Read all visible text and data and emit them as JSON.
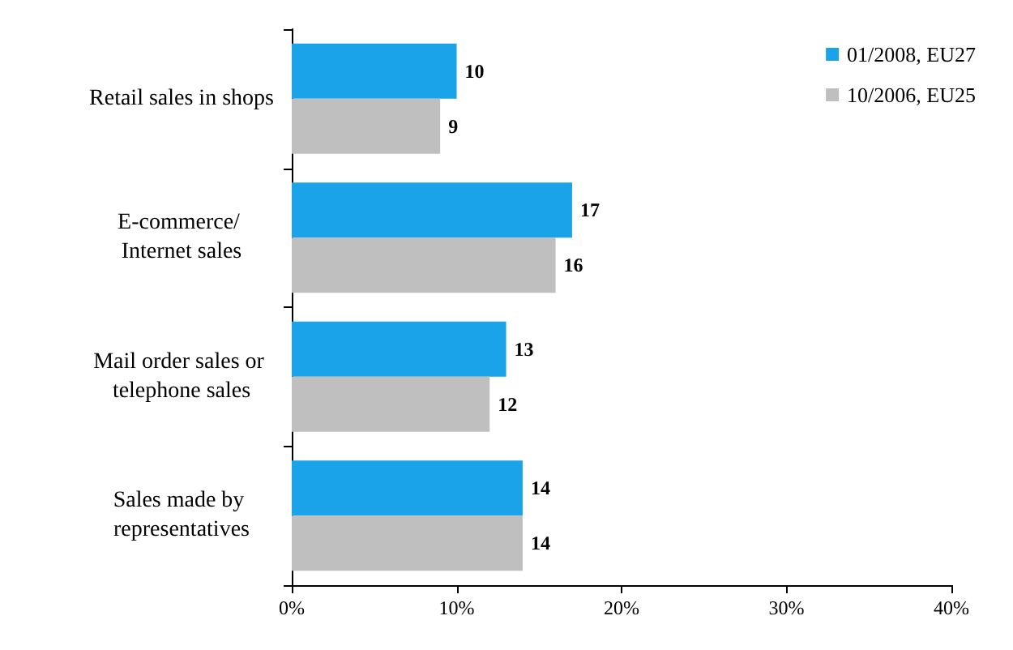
{
  "chart_data": {
    "type": "bar",
    "orientation": "horizontal",
    "categories": [
      "Retail sales in shops",
      "E-commerce/ Internet sales",
      "Mail order sales or telephone sales",
      "Sales made by representatives"
    ],
    "series": [
      {
        "name": "01/2008, EU27",
        "color": "#1aa3e8",
        "values": [
          10,
          17,
          13,
          14
        ]
      },
      {
        "name": "10/2006, EU25",
        "color": "#bfbfbf",
        "values": [
          9,
          16,
          12,
          14
        ]
      }
    ],
    "xlim": [
      0,
      40
    ],
    "xticks": [
      {
        "value": 0,
        "label": "0%"
      },
      {
        "value": 10,
        "label": "10%"
      },
      {
        "value": 20,
        "label": "20%"
      },
      {
        "value": 30,
        "label": "30%"
      },
      {
        "value": 40,
        "label": "40%"
      }
    ],
    "data_labels": true,
    "legend": "top right",
    "grid": false
  }
}
